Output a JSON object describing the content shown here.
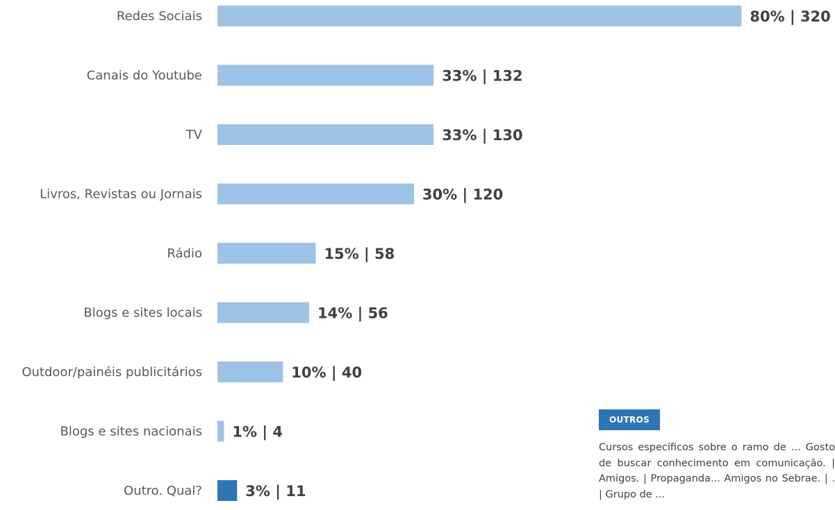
{
  "chart_data": {
    "type": "bar",
    "orientation": "horizontal",
    "categories": [
      "Redes Sociais",
      "Canais do Youtube",
      "TV",
      "Livros, Revistas ou Jornais",
      "Rádio",
      "Blogs e sites locais",
      "Outdoor/painéis publicitários",
      "Blogs e sites nacionais",
      "Outro. Qual?"
    ],
    "percent": [
      80,
      33,
      33,
      30,
      15,
      14,
      10,
      1,
      3
    ],
    "counts": [
      320,
      132,
      130,
      120,
      58,
      56,
      40,
      4,
      11
    ],
    "value_labels": [
      "80% | 320",
      "33% | 132",
      "33% | 130",
      "30% | 120",
      "15% | 58",
      "14% | 56",
      "10% | 40",
      "1% | 4",
      "3% | 11"
    ],
    "bar_colors": [
      "#9dc3e6",
      "#9dc3e6",
      "#9dc3e6",
      "#9dc3e6",
      "#9dc3e6",
      "#9dc3e6",
      "#9dc3e6",
      "#9dc3e6",
      "#2e75b6"
    ],
    "grid": false,
    "legend": "none"
  },
  "outros": {
    "badge": "OUTROS",
    "text": "Cursos específicos  sobre o ramo de ... Gosto de buscar conhecimento em comunicação. | Amigos. | Propaganda... Amigos no Sebrae. | . | Grupo de ..."
  }
}
